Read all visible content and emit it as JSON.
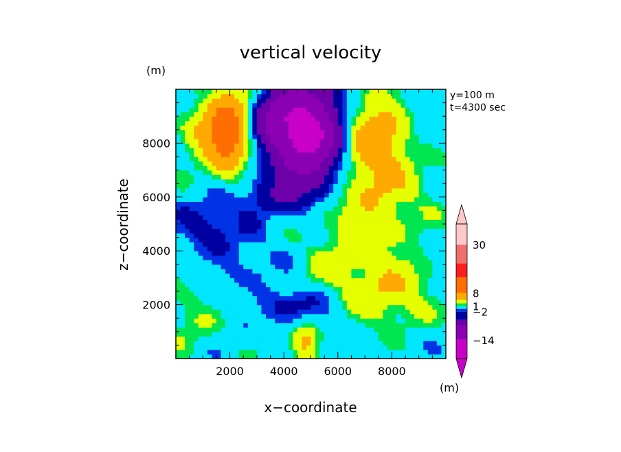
{
  "chart_data": {
    "type": "heatmap",
    "title": "vertical velocity",
    "xlabel": "x−coordinate",
    "ylabel": "z−coordinate",
    "x_unit": "(m)",
    "y_unit": "(m)",
    "colorbar_unit": "(m)",
    "annotations": [
      "y=100 m",
      "t=4300 sec"
    ],
    "xlim": [
      0,
      10000
    ],
    "ylim": [
      0,
      10000
    ],
    "x_ticks": [
      2000,
      4000,
      6000,
      8000
    ],
    "x_tick_labels": [
      "2000",
      "4000",
      "6000",
      "8000"
    ],
    "y_ticks": [
      2000,
      4000,
      6000,
      8000
    ],
    "y_tick_labels": [
      "2000",
      "4000",
      "6000",
      "8000"
    ],
    "colorbar": {
      "levels": [
        -14,
        -8,
        -4,
        -2,
        -1,
        1,
        2,
        4,
        8,
        14,
        20,
        30
      ],
      "labels": [
        "30",
        "8",
        "1",
        "−2",
        "−14"
      ],
      "colors": [
        "#c800c8",
        "#8c00b4",
        "#6e00aa",
        "#0000a0",
        "#0032e6",
        "#00e6ff",
        "#00e650",
        "#e6ff00",
        "#ffaa00",
        "#ff6e00",
        "#ff1e1e",
        "#f06e6e",
        "#ffc8c8"
      ]
    },
    "grid": false,
    "legend_position": "right",
    "fields": {
      "background": 0.0,
      "features": [
        {
          "x": 4900,
          "y": 8300,
          "sx": 900,
          "sy": 1300,
          "v": -16
        },
        {
          "x": 3700,
          "y": 8900,
          "sx": 700,
          "sy": 700,
          "v": -6
        },
        {
          "x": 1900,
          "y": 8500,
          "sx": 550,
          "sy": 1000,
          "v": 12
        },
        {
          "x": 7300,
          "y": 8300,
          "sx": 900,
          "sy": 1100,
          "v": 6
        },
        {
          "x": 7400,
          "y": 6000,
          "sx": 1400,
          "sy": 1300,
          "v": 3.2
        },
        {
          "x": 3400,
          "y": 6000,
          "sx": 900,
          "sy": 450,
          "v": -3
        },
        {
          "x": 1200,
          "y": 5000,
          "sx": 800,
          "sy": 600,
          "v": -3
        },
        {
          "x": 4500,
          "y": 2000,
          "sx": 800,
          "sy": 500,
          "v": -3
        },
        {
          "x": 3000,
          "y": 3500,
          "sx": 1500,
          "sy": 900,
          "v": -1.5
        },
        {
          "x": 8000,
          "y": 2400,
          "sx": 1100,
          "sy": 900,
          "v": 3.5
        },
        {
          "x": 500,
          "y": 1500,
          "sx": 700,
          "sy": 900,
          "v": 2
        },
        {
          "x": 4800,
          "y": 600,
          "sx": 350,
          "sy": 500,
          "v": 5
        },
        {
          "x": 700,
          "y": 8300,
          "sx": 500,
          "sy": 800,
          "v": 2.5
        },
        {
          "x": 9200,
          "y": 8600,
          "sx": 400,
          "sy": 500,
          "v": -1.2
        },
        {
          "x": 6200,
          "y": 4200,
          "sx": 1300,
          "sy": 1000,
          "v": 1.2
        },
        {
          "x": 5600,
          "y": 3200,
          "sx": 1500,
          "sy": 800,
          "v": 1.5
        }
      ]
    }
  }
}
